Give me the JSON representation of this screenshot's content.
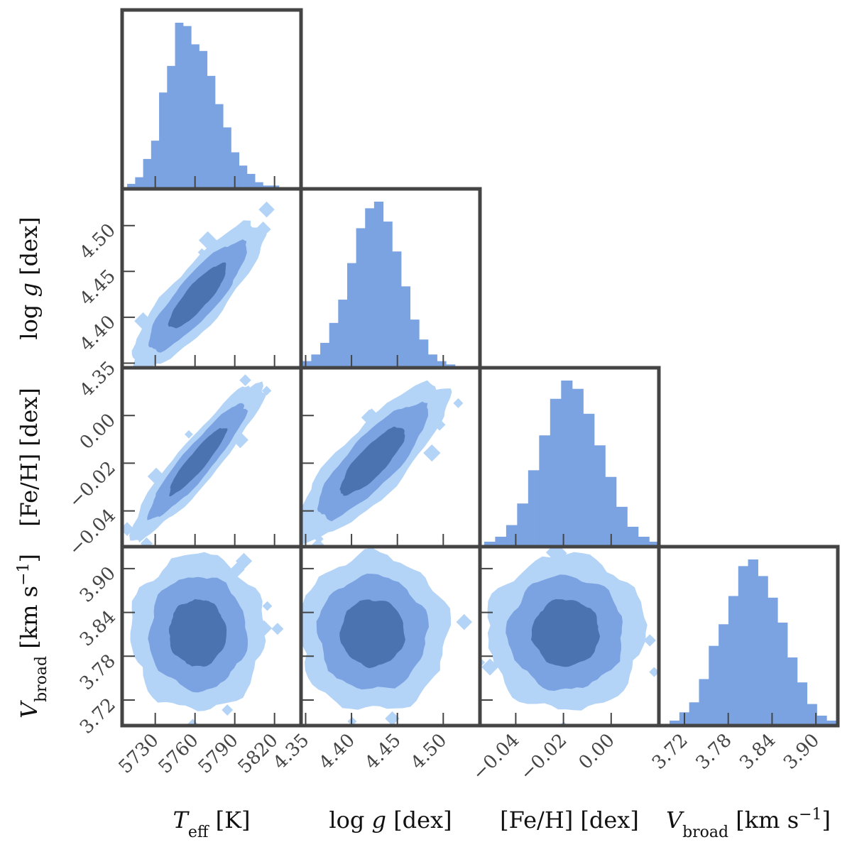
{
  "chart_data": {
    "type": "corner",
    "description_of_layout": "4x4 lower-triangular corner plot: 1D histograms on diagonal, 2D filled density contours off-diagonal",
    "colors": {
      "hist": "#7ba3e2",
      "contour_outer": "#b3d3f7",
      "contour_mid": "#7ba3e2",
      "contour_inner": "#4a73b0",
      "frame": "#444444"
    },
    "parameters": [
      {
        "key": "teff",
        "axis_label": {
          "main": "T",
          "sub": "eff",
          "unit": " [K]"
        },
        "range": [
          5705,
          5840
        ],
        "ticks": [
          5730,
          5760,
          5790,
          5820
        ],
        "tick_labels": [
          "5730",
          "5760",
          "5790",
          "5820"
        ],
        "mean": 5762,
        "sigma": 16
      },
      {
        "key": "logg",
        "axis_label": {
          "text": "log g [dex]"
        },
        "range": [
          4.345,
          4.54
        ],
        "ticks": [
          4.35,
          4.4,
          4.45,
          4.5
        ],
        "tick_labels": [
          "4.35",
          "4.40",
          "4.45",
          "4.50"
        ],
        "mean": 4.423,
        "sigma": 0.026
      },
      {
        "key": "feh",
        "axis_label": {
          "text": "[Fe/H] [dex]"
        },
        "range": [
          -0.055,
          0.02
        ],
        "ticks": [
          -0.04,
          -0.02,
          0.0
        ],
        "tick_labels": [
          "−0.04",
          "−0.02",
          "0.00"
        ],
        "mean": -0.019,
        "sigma": 0.0105
      },
      {
        "key": "vbroad",
        "axis_label": {
          "main": "V",
          "sub": "broad",
          "unit": " [km s",
          "sup": "−1",
          "close": "]"
        },
        "range": [
          3.685,
          3.93
        ],
        "ticks": [
          3.72,
          3.78,
          3.84,
          3.9
        ],
        "tick_labels": [
          "3.72",
          "3.78",
          "3.84",
          "3.90"
        ],
        "mean": 3.812,
        "sigma": 0.034
      }
    ],
    "correlations": [
      {
        "pair": [
          "teff",
          "logg"
        ],
        "rho": 0.85
      },
      {
        "pair": [
          "teff",
          "feh"
        ],
        "rho": 0.92
      },
      {
        "pair": [
          "logg",
          "feh"
        ],
        "rho": 0.82
      },
      {
        "pair": [
          "teff",
          "vbroad"
        ],
        "rho": 0.0
      },
      {
        "pair": [
          "logg",
          "vbroad"
        ],
        "rho": 0.0
      },
      {
        "pair": [
          "feh",
          "vbroad"
        ],
        "rho": 0.0
      }
    ],
    "histograms": {
      "teff": [
        1,
        3,
        7,
        18,
        29,
        58,
        74,
        100,
        98,
        87,
        83,
        68,
        51,
        37,
        22,
        14,
        9,
        4,
        2,
        2,
        1
      ],
      "logg": [
        1,
        2,
        4,
        8,
        15,
        27,
        41,
        63,
        84,
        96,
        100,
        88,
        70,
        49,
        29,
        17,
        8,
        4,
        2,
        1,
        1
      ],
      "feh": [
        1,
        3,
        6,
        13,
        26,
        46,
        67,
        89,
        100,
        95,
        80,
        61,
        42,
        24,
        12,
        6,
        3,
        1
      ],
      "vbroad": [
        1,
        3,
        8,
        14,
        28,
        48,
        61,
        78,
        96,
        100,
        90,
        77,
        62,
        41,
        26,
        13,
        6,
        3,
        2,
        1
      ]
    },
    "contour_levels_sigma": [
      1,
      2,
      3
    ]
  }
}
